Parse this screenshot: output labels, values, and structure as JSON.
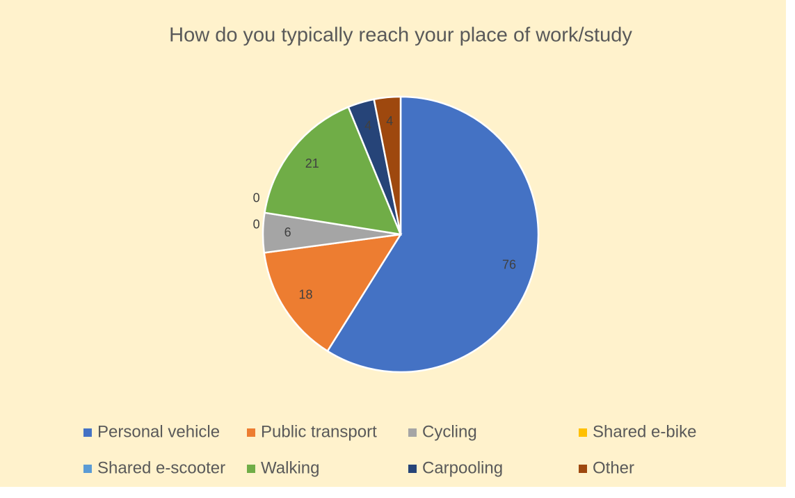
{
  "chart_data": {
    "type": "pie",
    "title": "How do you typically reach your place of work/study",
    "categories": [
      "Personal vehicle",
      "Public transport",
      "Cycling",
      "Shared e-bike",
      "Shared e-scooter",
      "Walking",
      "Carpooling",
      "Other"
    ],
    "values": [
      76,
      18,
      6,
      0,
      0,
      21,
      4,
      4
    ],
    "colors": [
      "#4472c4",
      "#ed7d31",
      "#a5a5a5",
      "#ffc000",
      "#5b9bd5",
      "#70ad47",
      "#264478",
      "#9e480e"
    ],
    "legend": "bottom"
  }
}
